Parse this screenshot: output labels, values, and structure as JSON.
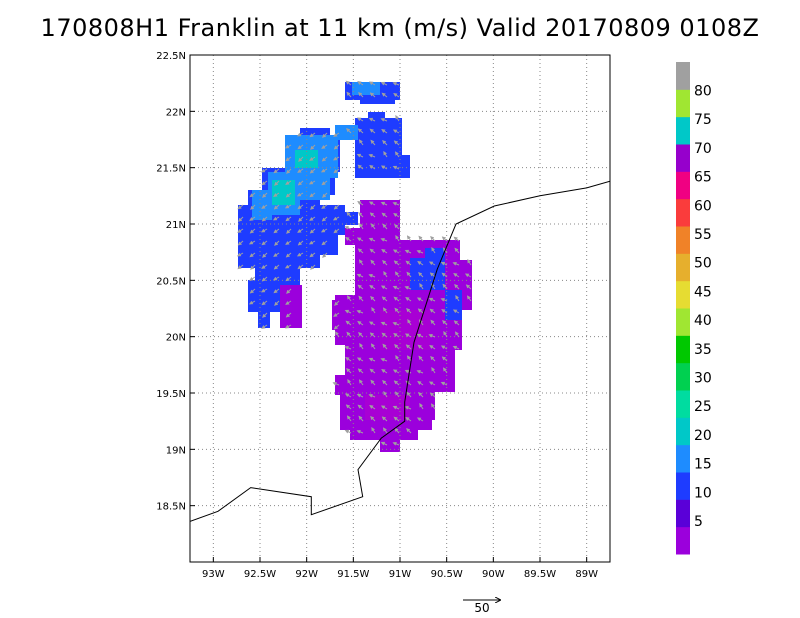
{
  "title": "170808H1 Franklin at 11 km (m/s) Valid 20170809 0108Z",
  "map": {
    "lon_range": [
      -93.25,
      -88.75
    ],
    "lat_range": [
      18.0,
      22.5
    ],
    "lon_ticks": [
      {
        "value": -93.0,
        "label": "93W"
      },
      {
        "value": -92.5,
        "label": "92.5W"
      },
      {
        "value": -92.0,
        "label": "92W"
      },
      {
        "value": -91.5,
        "label": "91.5W"
      },
      {
        "value": -91.0,
        "label": "91W"
      },
      {
        "value": -90.5,
        "label": "90.5W"
      },
      {
        "value": -90.0,
        "label": "90W"
      },
      {
        "value": -89.5,
        "label": "89.5W"
      },
      {
        "value": -89.0,
        "label": "89W"
      }
    ],
    "lat_ticks": [
      {
        "value": 18.5,
        "label": "18.5N"
      },
      {
        "value": 19.0,
        "label": "19N"
      },
      {
        "value": 19.5,
        "label": "19.5N"
      },
      {
        "value": 20.0,
        "label": "20N"
      },
      {
        "value": 20.5,
        "label": "20.5N"
      },
      {
        "value": 21.0,
        "label": "21N"
      },
      {
        "value": 21.5,
        "label": "21.5N"
      },
      {
        "value": 22.0,
        "label": "22N"
      },
      {
        "value": 22.5,
        "label": "22.5N"
      }
    ],
    "grid": true,
    "border_line": [
      [
        -93.25,
        18.36
      ],
      [
        -92.95,
        18.45
      ],
      [
        -92.6,
        18.66
      ],
      [
        -91.95,
        18.58
      ],
      [
        -91.95,
        18.42
      ],
      [
        -91.4,
        18.58
      ],
      [
        -91.45,
        18.82
      ],
      [
        -91.2,
        19.1
      ],
      [
        -90.95,
        19.25
      ],
      [
        -90.95,
        19.42
      ],
      [
        -90.85,
        19.95
      ],
      [
        -90.6,
        20.6
      ],
      [
        -90.4,
        21.0
      ],
      [
        -89.99,
        21.16
      ],
      [
        -89.5,
        21.25
      ],
      [
        -89.0,
        21.32
      ],
      [
        -88.75,
        21.38
      ]
    ]
  },
  "colorbar": {
    "labels": [
      "5",
      "10",
      "15",
      "20",
      "25",
      "30",
      "35",
      "40",
      "45",
      "50",
      "55",
      "60",
      "65",
      "70",
      "75",
      "80"
    ],
    "colors": [
      "#9b00dc",
      "#5a00d8",
      "#1e3cff",
      "#1e8cff",
      "#00c8c8",
      "#00dca0",
      "#00d050",
      "#00c800",
      "#a0e632",
      "#e6dc32",
      "#e6af2d",
      "#f08228",
      "#fa3c3c",
      "#f00082",
      "#9600cc",
      "#00c8c8",
      "#a0e632",
      "#a0a0a0"
    ]
  },
  "scale_vector": {
    "label": "50"
  }
}
